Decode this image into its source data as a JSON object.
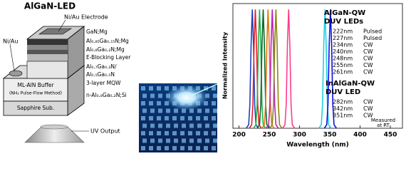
{
  "diagram": {
    "title": "AlGaN-LED",
    "electrode": "Ni/Au Electrode",
    "side_contact": "Ni/Au",
    "layers": [
      "GaN;Mg",
      "Al₀.₈₅Ga₀.₁₅N;Mg",
      "Al₀.₈Ga₀.₂N;Mg",
      "E-Blocking Layer",
      "Al₀.₇Ga₀.₃N/",
      "Al₀.₅Ga₀.₅N",
      "3-layer MQW",
      "n-Al₀.₈Ga₀.₂N;Si"
    ],
    "buffer": "ML-AlN Buffer",
    "buffer_note": "(NH₃ Pulse-Flow Method)",
    "substrate": "Sapphire Sub.",
    "output": "UV Output"
  },
  "chart_data": {
    "type": "line",
    "xlabel": "Wavelength  (nm)",
    "ylabel": "Normalized Intensity",
    "xlim": [
      190,
      470
    ],
    "xticks": [
      200,
      250,
      300,
      350,
      400,
      450
    ],
    "ylim": [
      0,
      1.05
    ],
    "series": [
      {
        "color": "#1f3fbf",
        "x": [
          212,
          216,
          218,
          220,
          222,
          224,
          226,
          228,
          232
        ],
        "values": [
          0,
          0.03,
          0.2,
          0.7,
          1,
          0.7,
          0.2,
          0.03,
          0
        ]
      },
      {
        "color": "#e0202a",
        "x": [
          217,
          221,
          223,
          225,
          227,
          229,
          231,
          233,
          237
        ],
        "values": [
          0,
          0.03,
          0.2,
          0.7,
          1,
          0.7,
          0.2,
          0.03,
          0
        ]
      },
      {
        "color": "#22b14c",
        "x": [
          224,
          228,
          230,
          232,
          234,
          236,
          238,
          240,
          244
        ],
        "values": [
          0,
          0.03,
          0.2,
          0.7,
          1,
          0.7,
          0.2,
          0.03,
          0
        ]
      },
      {
        "color": "#0a6a2a",
        "x": [
          230,
          234,
          236,
          238,
          240,
          242,
          244,
          246,
          250
        ],
        "values": [
          0,
          0.03,
          0.2,
          0.7,
          1,
          0.7,
          0.2,
          0.03,
          0
        ]
      },
      {
        "color": "#e07a10",
        "x": [
          238,
          242,
          244,
          246,
          248,
          250,
          252,
          254,
          258
        ],
        "values": [
          0,
          0.03,
          0.2,
          0.7,
          1,
          0.7,
          0.2,
          0.03,
          0
        ]
      },
      {
        "color": "#c020c0",
        "x": [
          245,
          249,
          251,
          253,
          255,
          257,
          259,
          261,
          265
        ],
        "values": [
          0,
          0.03,
          0.2,
          0.7,
          1,
          0.7,
          0.2,
          0.03,
          0
        ]
      },
      {
        "color": "#8a8a10",
        "x": [
          251,
          255,
          257,
          259,
          261,
          263,
          265,
          267,
          271
        ],
        "values": [
          0,
          0.03,
          0.2,
          0.7,
          1,
          0.7,
          0.2,
          0.03,
          0
        ]
      },
      {
        "color": "#ff3c8c",
        "x": [
          272,
          276,
          278,
          280,
          282,
          284,
          286,
          288,
          292
        ],
        "values": [
          0,
          0.03,
          0.2,
          0.7,
          1,
          0.7,
          0.2,
          0.03,
          0
        ]
      },
      {
        "color": "#20d0e0",
        "x": [
          332,
          336,
          338,
          340,
          342,
          344,
          346,
          348,
          352
        ],
        "values": [
          0,
          0.03,
          0.2,
          0.7,
          1,
          0.7,
          0.2,
          0.03,
          0
        ]
      },
      {
        "color": "#1010e0",
        "x": [
          341,
          345,
          347,
          349,
          351,
          353,
          355,
          357,
          361
        ],
        "values": [
          0,
          0.03,
          0.2,
          0.7,
          1,
          0.7,
          0.2,
          0.03,
          0
        ]
      }
    ],
    "group1": {
      "title": [
        "AlGaN-QW",
        "DUV LEDs"
      ],
      "rows": [
        [
          "222nm",
          "Pulsed"
        ],
        [
          "227nm",
          "Pulsed"
        ],
        [
          "234nm",
          "CW"
        ],
        [
          "240nm",
          "CW"
        ],
        [
          "248nm",
          "CW"
        ],
        [
          "255nm",
          "CW"
        ],
        [
          "261nm",
          "CW"
        ]
      ]
    },
    "group2": {
      "title": [
        "InAlGaN-QW",
        "DUV LED"
      ],
      "rows": [
        [
          "282nm",
          "CW"
        ],
        [
          "342nm",
          "CW"
        ],
        [
          "351nm",
          "CW"
        ]
      ]
    },
    "note": [
      "Measured",
      "at RT"
    ]
  }
}
